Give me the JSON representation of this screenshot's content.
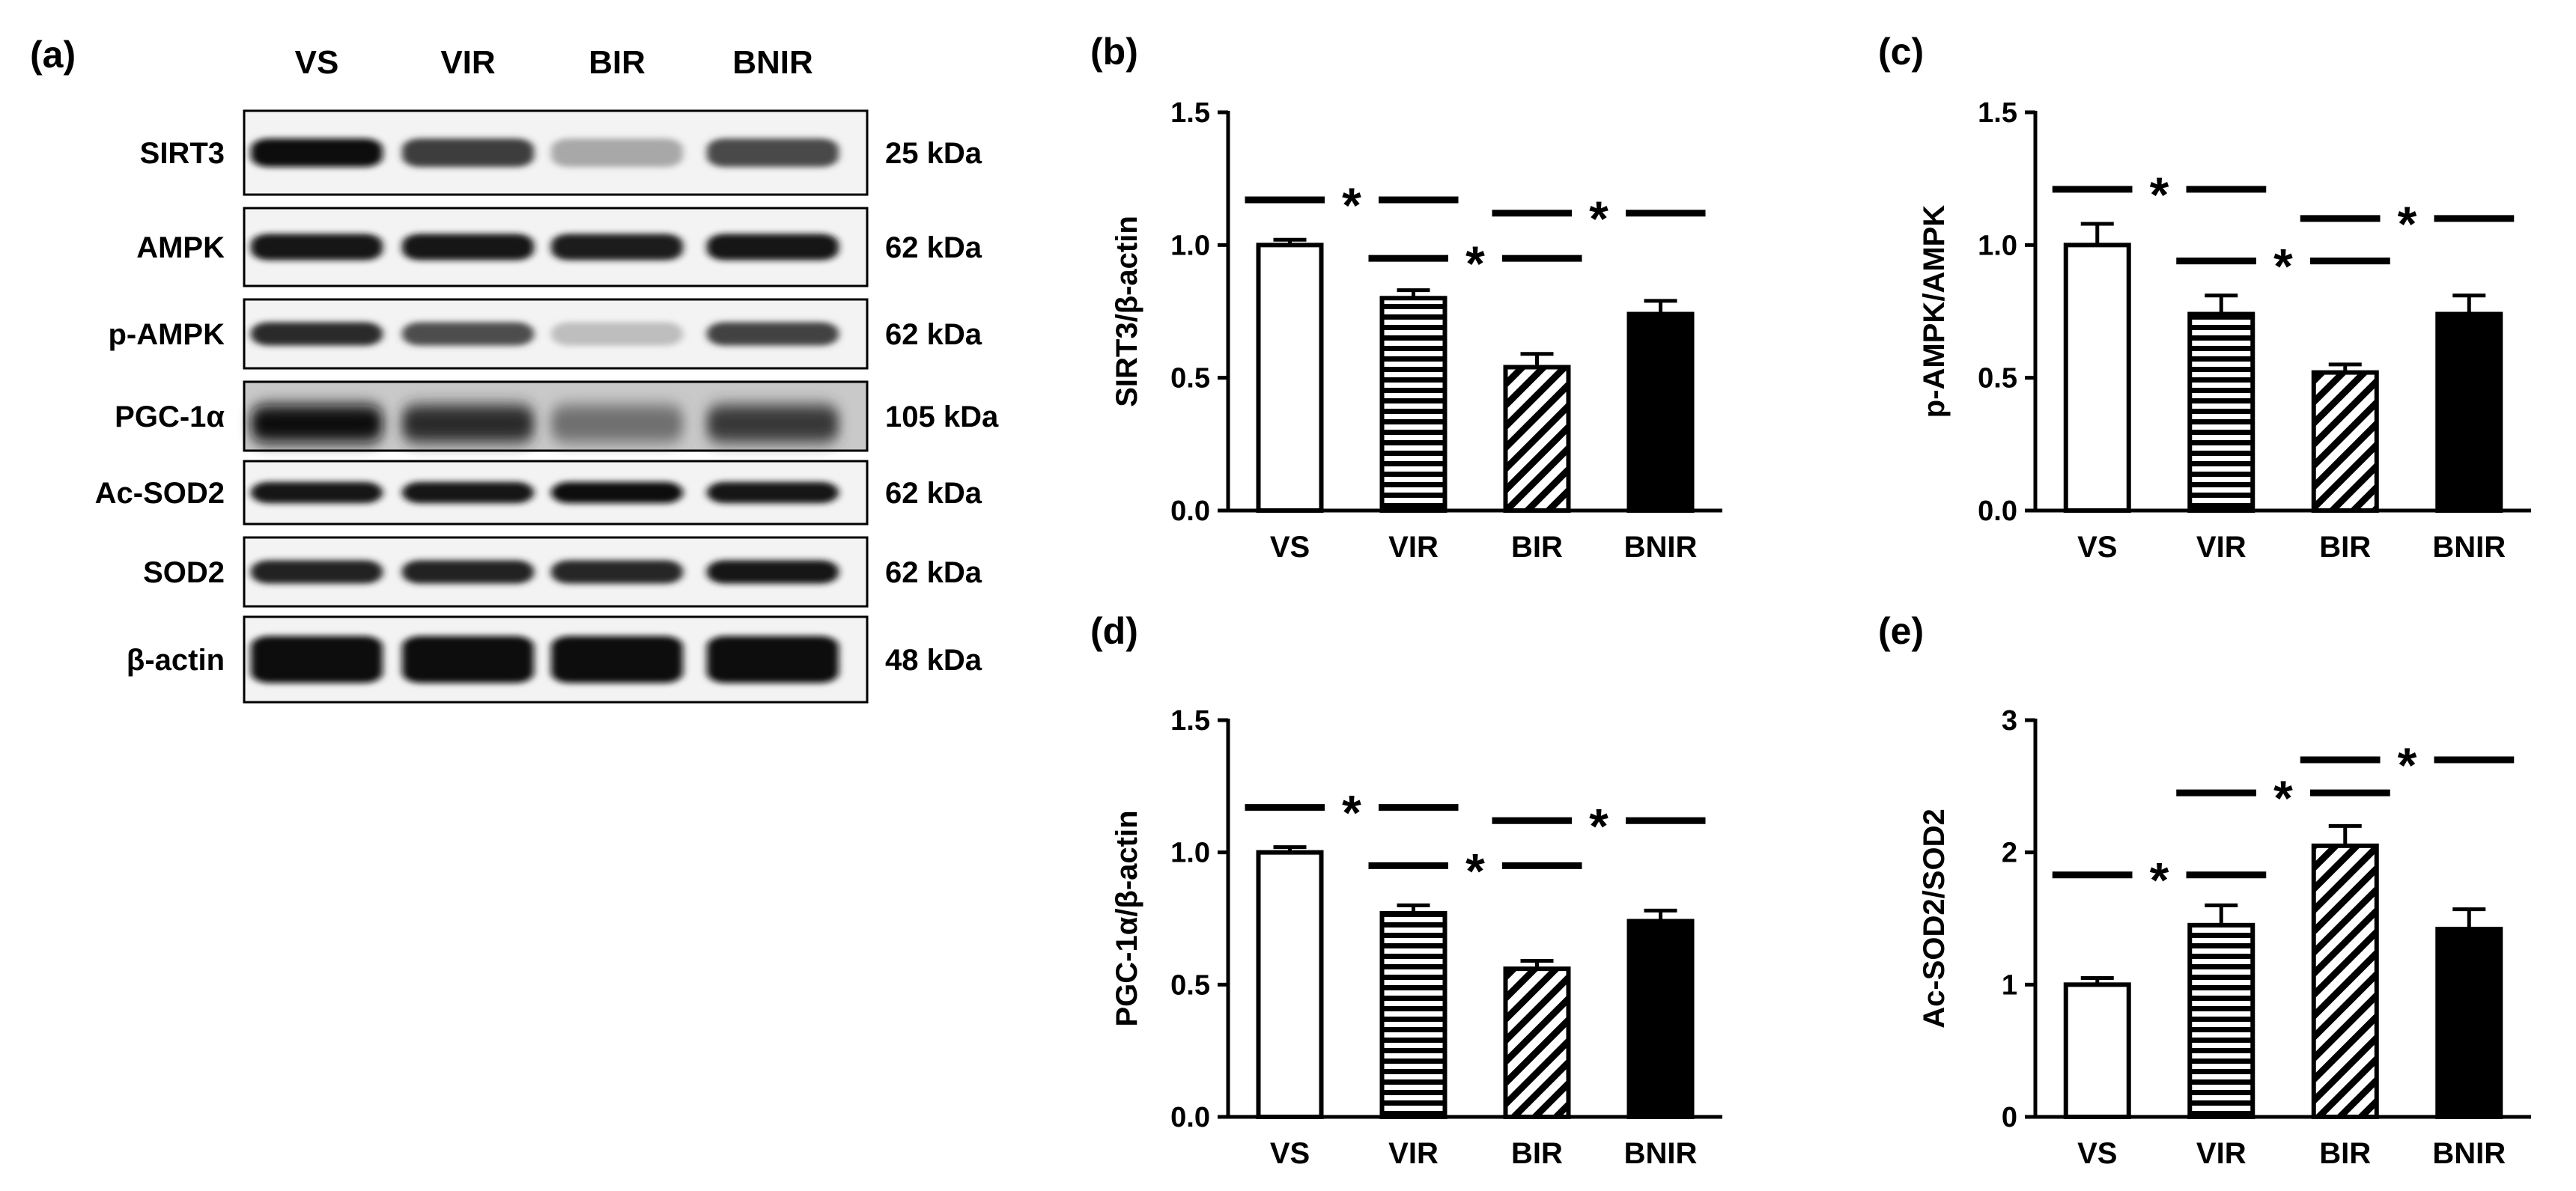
{
  "figure": {
    "blot": {
      "panel_label": "(a)",
      "lanes": [
        "VS",
        "VIR",
        "BIR",
        "BNIR"
      ],
      "rows": [
        {
          "name": "SIRT3",
          "size": "25 kDa",
          "intensity": [
            1.0,
            0.78,
            0.3,
            0.72
          ],
          "style": "band"
        },
        {
          "name": "AMPK",
          "size": "62 kDa",
          "intensity": [
            0.95,
            0.95,
            0.92,
            0.95
          ],
          "style": "band"
        },
        {
          "name": "p-AMPK",
          "size": "62 kDa",
          "intensity": [
            0.85,
            0.7,
            0.2,
            0.75
          ],
          "style": "band"
        },
        {
          "name": "PGC-1α",
          "size": "105 kDa",
          "intensity": [
            1.0,
            0.85,
            0.55,
            0.8
          ],
          "style": "smear"
        },
        {
          "name": "Ac-SOD2",
          "size": "62 kDa",
          "intensity": [
            0.95,
            0.95,
            0.97,
            0.95
          ],
          "style": "band"
        },
        {
          "name": "SOD2",
          "size": "62 kDa",
          "intensity": [
            0.9,
            0.9,
            0.88,
            0.95
          ],
          "style": "band"
        },
        {
          "name": "β-actin",
          "size": "48 kDa",
          "intensity": [
            1.0,
            1.0,
            1.0,
            1.0
          ],
          "style": "thick"
        }
      ]
    }
  },
  "chart_data": [
    {
      "type": "bar",
      "panel_label": "(b)",
      "ylabel": "SIRT3/β-actin",
      "categories": [
        "VS",
        "VIR",
        "BIR",
        "BNIR"
      ],
      "values": [
        1.0,
        0.8,
        0.54,
        0.74
      ],
      "errors": [
        0.02,
        0.03,
        0.05,
        0.05
      ],
      "fills": [
        "open",
        "horizontal-stripes",
        "diagonal-stripes",
        "solid"
      ],
      "ylim": [
        0,
        1.5
      ],
      "yticks": [
        "0.0",
        "0.5",
        "1.0",
        "1.5"
      ],
      "significance": [
        {
          "from": 0,
          "to": 1,
          "y": 1.17,
          "label": "*"
        },
        {
          "from": 1,
          "to": 2,
          "y": 0.95,
          "label": "*"
        },
        {
          "from": 2,
          "to": 3,
          "y": 1.12,
          "label": "*"
        }
      ]
    },
    {
      "type": "bar",
      "panel_label": "(c)",
      "ylabel": "p-AMPK/AMPK",
      "categories": [
        "VS",
        "VIR",
        "BIR",
        "BNIR"
      ],
      "values": [
        1.0,
        0.74,
        0.52,
        0.74
      ],
      "errors": [
        0.08,
        0.07,
        0.03,
        0.07
      ],
      "fills": [
        "open",
        "horizontal-stripes",
        "diagonal-stripes",
        "solid"
      ],
      "ylim": [
        0,
        1.5
      ],
      "yticks": [
        "0.0",
        "0.5",
        "1.0",
        "1.5"
      ],
      "significance": [
        {
          "from": 0,
          "to": 1,
          "y": 1.21,
          "label": "*"
        },
        {
          "from": 1,
          "to": 2,
          "y": 0.94,
          "label": "*"
        },
        {
          "from": 2,
          "to": 3,
          "y": 1.1,
          "label": "*"
        }
      ]
    },
    {
      "type": "bar",
      "panel_label": "(d)",
      "ylabel": "PGC-1α/β-actin",
      "categories": [
        "VS",
        "VIR",
        "BIR",
        "BNIR"
      ],
      "values": [
        1.0,
        0.77,
        0.56,
        0.74
      ],
      "errors": [
        0.02,
        0.03,
        0.03,
        0.04
      ],
      "fills": [
        "open",
        "horizontal-stripes",
        "diagonal-stripes",
        "solid"
      ],
      "ylim": [
        0,
        1.5
      ],
      "yticks": [
        "0.0",
        "0.5",
        "1.0",
        "1.5"
      ],
      "significance": [
        {
          "from": 0,
          "to": 1,
          "y": 1.17,
          "label": "*"
        },
        {
          "from": 1,
          "to": 2,
          "y": 0.95,
          "label": "*"
        },
        {
          "from": 2,
          "to": 3,
          "y": 1.12,
          "label": "*"
        }
      ]
    },
    {
      "type": "bar",
      "panel_label": "(e)",
      "ylabel": "Ac-SOD2/SOD2",
      "categories": [
        "VS",
        "VIR",
        "BIR",
        "BNIR"
      ],
      "values": [
        1.0,
        1.45,
        2.05,
        1.42
      ],
      "errors": [
        0.05,
        0.15,
        0.15,
        0.15
      ],
      "fills": [
        "open",
        "horizontal-stripes",
        "diagonal-stripes",
        "solid"
      ],
      "ylim": [
        0,
        3
      ],
      "yticks": [
        "0",
        "1",
        "2",
        "3"
      ],
      "significance": [
        {
          "from": 0,
          "to": 1,
          "y": 1.83,
          "label": "*"
        },
        {
          "from": 1,
          "to": 2,
          "y": 2.45,
          "label": "*"
        },
        {
          "from": 2,
          "to": 3,
          "y": 2.7,
          "label": "*"
        }
      ]
    }
  ]
}
